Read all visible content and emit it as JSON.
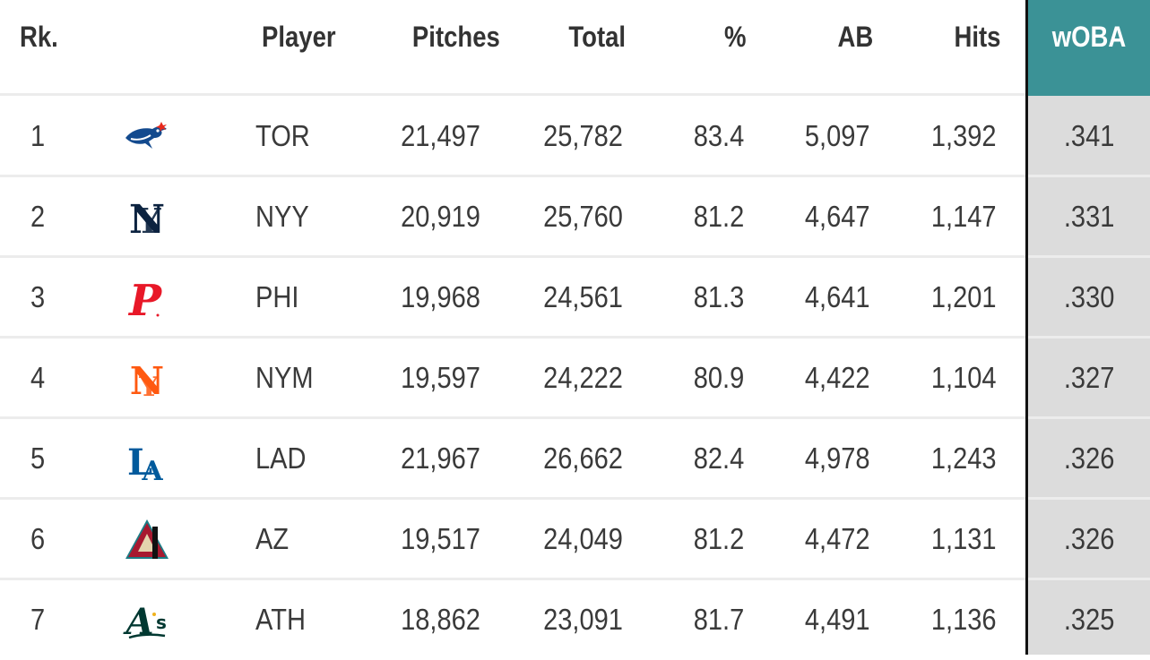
{
  "headers": {
    "rank": "Rk.",
    "player": "Player",
    "pitches": "Pitches",
    "total": "Total",
    "pct": "%",
    "ab": "AB",
    "hits": "Hits",
    "woba": "wOBA"
  },
  "colors": {
    "woba_header_bg": "#3b9296",
    "woba_column_bg": "#dcdcdc",
    "divider": "#111111"
  },
  "rows": [
    {
      "rank": "1",
      "team": "TOR",
      "logo": "blue-jays-logo-icon",
      "pitches": "21,497",
      "total": "25,782",
      "pct": "83.4",
      "ab": "5,097",
      "hits": "1,392",
      "woba": ".341"
    },
    {
      "rank": "2",
      "team": "NYY",
      "logo": "yankees-logo-icon",
      "pitches": "20,919",
      "total": "25,760",
      "pct": "81.2",
      "ab": "4,647",
      "hits": "1,147",
      "woba": ".331"
    },
    {
      "rank": "3",
      "team": "PHI",
      "logo": "phillies-logo-icon",
      "pitches": "19,968",
      "total": "24,561",
      "pct": "81.3",
      "ab": "4,641",
      "hits": "1,201",
      "woba": ".330"
    },
    {
      "rank": "4",
      "team": "NYM",
      "logo": "mets-logo-icon",
      "pitches": "19,597",
      "total": "24,222",
      "pct": "80.9",
      "ab": "4,422",
      "hits": "1,104",
      "woba": ".327"
    },
    {
      "rank": "5",
      "team": "LAD",
      "logo": "dodgers-logo-icon",
      "pitches": "21,967",
      "total": "26,662",
      "pct": "82.4",
      "ab": "4,978",
      "hits": "1,243",
      "woba": ".326"
    },
    {
      "rank": "6",
      "team": "AZ",
      "logo": "diamondbacks-logo-icon",
      "pitches": "19,517",
      "total": "24,049",
      "pct": "81.2",
      "ab": "4,472",
      "hits": "1,131",
      "woba": ".326"
    },
    {
      "rank": "7",
      "team": "ATH",
      "logo": "athletics-logo-icon",
      "pitches": "18,862",
      "total": "23,091",
      "pct": "81.7",
      "ab": "4,491",
      "hits": "1,136",
      "woba": ".325"
    }
  ]
}
